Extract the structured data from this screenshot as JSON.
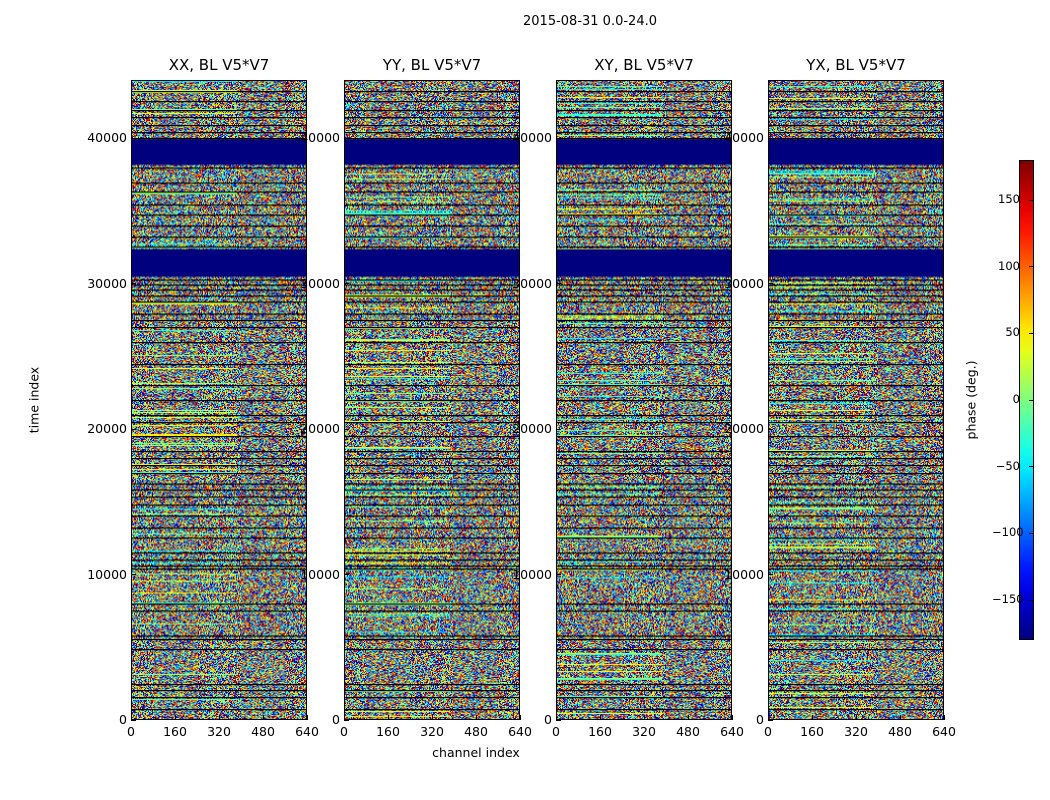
{
  "figure": {
    "title": "2015-08-31 0.0-24.0",
    "ylabel": "time index",
    "xlabel": "channel index",
    "colorbar_label": "phase (deg.)"
  },
  "chart_data": {
    "type": "heatmap",
    "title": "2015-08-31 0.0-24.0",
    "xlabel": "channel index",
    "ylabel": "time index",
    "xlim": [
      0,
      640
    ],
    "ylim": [
      0,
      44000
    ],
    "xticks": [
      "0",
      "160",
      "320",
      "480",
      "640"
    ],
    "yticks": [
      "0",
      "10000",
      "20000",
      "30000",
      "40000"
    ],
    "colorbar": {
      "label": "phase (deg.)",
      "range": [
        -180,
        180
      ],
      "ticks": [
        "150",
        "100",
        "50",
        "0",
        "−50",
        "−100",
        "−150"
      ],
      "colormap": "jet"
    },
    "panels": [
      {
        "title": "XX, BL V5*V7",
        "polarization": "XX"
      },
      {
        "title": "YY, BL V5*V7",
        "polarization": "YY"
      },
      {
        "title": "XY, BL V5*V7",
        "polarization": "XY"
      },
      {
        "title": "YX, BL V5*V7",
        "polarization": "YX"
      }
    ],
    "flagged_time_ranges": [
      [
        38200,
        40000
      ],
      [
        30500,
        32400
      ]
    ],
    "separator_lines": [
      700,
      1500,
      2000,
      2400,
      4800,
      5500,
      5800,
      7500,
      8000,
      10400,
      10600,
      11000,
      11500,
      12500,
      13200,
      14000,
      14800,
      15300,
      15800,
      16200,
      17000,
      17500,
      18000,
      18500,
      19500,
      20500,
      21000,
      22000,
      23000,
      24500,
      26000,
      27000,
      27500,
      28000,
      28800,
      29200,
      29600,
      30000,
      30300,
      32600,
      33300,
      34000,
      34800,
      35500,
      36400,
      37000,
      38000,
      40100,
      40500,
      41000,
      41500,
      42000,
      42600,
      43300
    ]
  }
}
